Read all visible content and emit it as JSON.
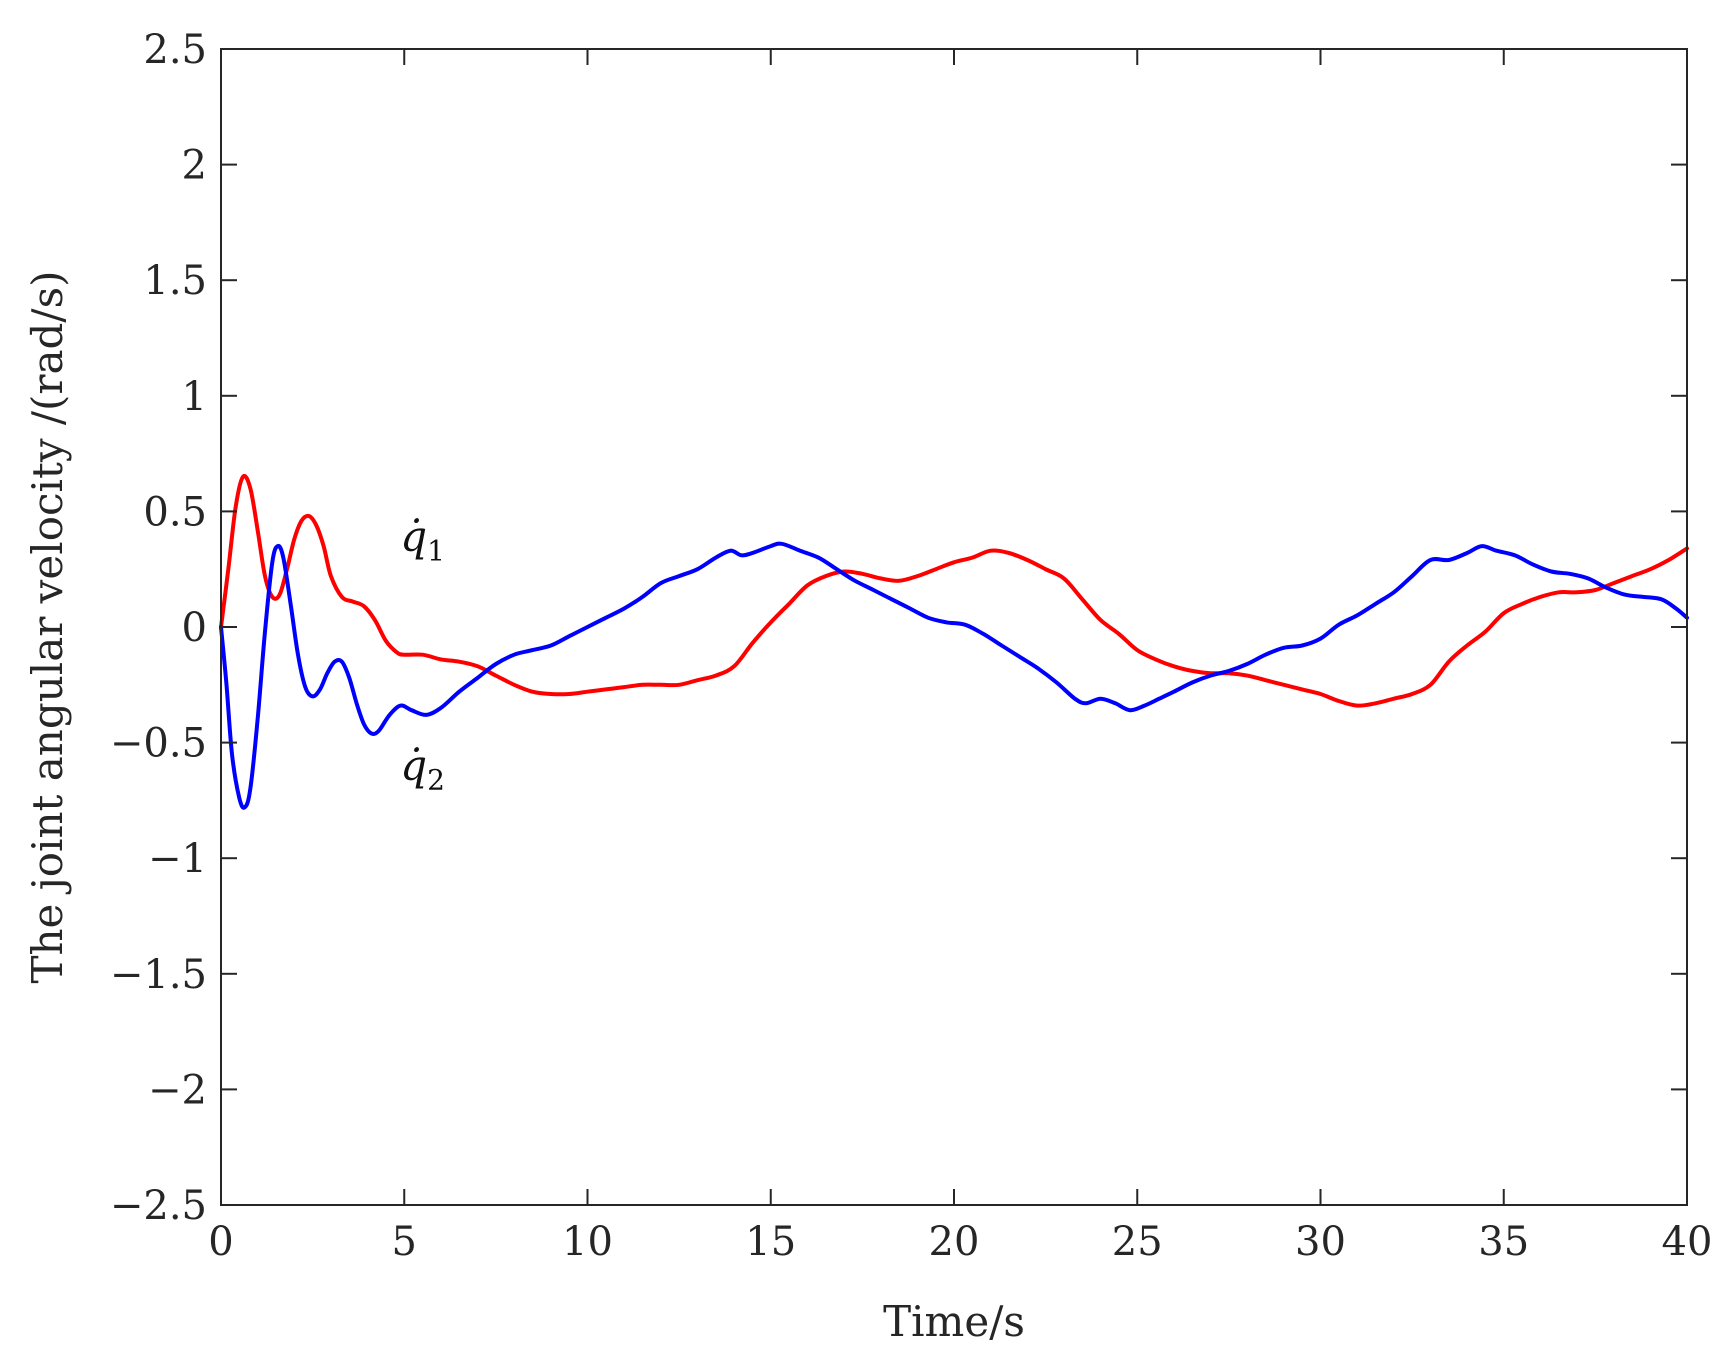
{
  "chart_data": {
    "type": "line",
    "title": "",
    "xlabel": "Time/s",
    "ylabel": "The joint angular velocity /(rad/s)",
    "xlim": [
      0,
      40
    ],
    "ylim": [
      -2.5,
      2.5
    ],
    "xticks": [
      0,
      5,
      10,
      15,
      20,
      25,
      30,
      35,
      40
    ],
    "xtick_labels": [
      "0",
      "5",
      "10",
      "15",
      "20",
      "25",
      "30",
      "35",
      "40"
    ],
    "yticks": [
      -2.5,
      -2,
      -1.5,
      -1,
      -0.5,
      0,
      0.5,
      1,
      1.5,
      2,
      2.5
    ],
    "ytick_labels": [
      "−2.5",
      "−2",
      "−1.5",
      "−1",
      "−0.5",
      "0",
      "0.5",
      "1",
      "1.5",
      "2",
      "2.5"
    ],
    "grid": false,
    "legend": "none",
    "annotations": [
      {
        "symbol": "q̇",
        "subscript": "1",
        "x": 5.5,
        "y": 0.33,
        "series": 0
      },
      {
        "symbol": "q̇",
        "subscript": "2",
        "x": 5.5,
        "y": -0.66,
        "series": 1
      }
    ],
    "series": [
      {
        "color": "#ff0000",
        "points": [
          [
            0,
            0
          ],
          [
            0.2,
            0.25
          ],
          [
            0.4,
            0.52
          ],
          [
            0.6,
            0.65
          ],
          [
            0.8,
            0.6
          ],
          [
            1.0,
            0.42
          ],
          [
            1.2,
            0.22
          ],
          [
            1.4,
            0.13
          ],
          [
            1.6,
            0.14
          ],
          [
            1.8,
            0.25
          ],
          [
            2.0,
            0.38
          ],
          [
            2.2,
            0.46
          ],
          [
            2.4,
            0.48
          ],
          [
            2.6,
            0.44
          ],
          [
            2.8,
            0.35
          ],
          [
            3.0,
            0.22
          ],
          [
            3.3,
            0.13
          ],
          [
            3.6,
            0.11
          ],
          [
            3.9,
            0.09
          ],
          [
            4.2,
            0.03
          ],
          [
            4.5,
            -0.06
          ],
          [
            4.8,
            -0.11
          ],
          [
            5.0,
            -0.12
          ],
          [
            5.5,
            -0.12
          ],
          [
            6.0,
            -0.14
          ],
          [
            6.5,
            -0.15
          ],
          [
            7.0,
            -0.17
          ],
          [
            7.5,
            -0.21
          ],
          [
            8.0,
            -0.25
          ],
          [
            8.5,
            -0.28
          ],
          [
            9.0,
            -0.29
          ],
          [
            9.5,
            -0.29
          ],
          [
            10.0,
            -0.28
          ],
          [
            10.5,
            -0.27
          ],
          [
            11.0,
            -0.26
          ],
          [
            11.5,
            -0.25
          ],
          [
            12.0,
            -0.25
          ],
          [
            12.5,
            -0.25
          ],
          [
            13.0,
            -0.23
          ],
          [
            13.5,
            -0.21
          ],
          [
            14.0,
            -0.17
          ],
          [
            14.5,
            -0.07
          ],
          [
            15.0,
            0.02
          ],
          [
            15.5,
            0.1
          ],
          [
            16.0,
            0.18
          ],
          [
            16.5,
            0.22
          ],
          [
            17.0,
            0.24
          ],
          [
            17.5,
            0.23
          ],
          [
            18.0,
            0.21
          ],
          [
            18.5,
            0.2
          ],
          [
            19.0,
            0.22
          ],
          [
            19.5,
            0.25
          ],
          [
            20.0,
            0.28
          ],
          [
            20.5,
            0.3
          ],
          [
            21.0,
            0.33
          ],
          [
            21.5,
            0.32
          ],
          [
            22.0,
            0.29
          ],
          [
            22.5,
            0.25
          ],
          [
            23.0,
            0.21
          ],
          [
            23.5,
            0.12
          ],
          [
            24.0,
            0.03
          ],
          [
            24.5,
            -0.03
          ],
          [
            25.0,
            -0.1
          ],
          [
            25.5,
            -0.14
          ],
          [
            26.0,
            -0.17
          ],
          [
            26.5,
            -0.19
          ],
          [
            27.0,
            -0.2
          ],
          [
            27.5,
            -0.2
          ],
          [
            28.0,
            -0.21
          ],
          [
            28.5,
            -0.23
          ],
          [
            29.0,
            -0.25
          ],
          [
            29.5,
            -0.27
          ],
          [
            30.0,
            -0.29
          ],
          [
            30.5,
            -0.32
          ],
          [
            31.0,
            -0.34
          ],
          [
            31.5,
            -0.33
          ],
          [
            32.0,
            -0.31
          ],
          [
            32.5,
            -0.29
          ],
          [
            33.0,
            -0.25
          ],
          [
            33.5,
            -0.15
          ],
          [
            34.0,
            -0.08
          ],
          [
            34.5,
            -0.02
          ],
          [
            35.0,
            0.06
          ],
          [
            35.5,
            0.1
          ],
          [
            36.0,
            0.13
          ],
          [
            36.5,
            0.15
          ],
          [
            37.0,
            0.15
          ],
          [
            37.5,
            0.16
          ],
          [
            38.0,
            0.19
          ],
          [
            38.5,
            0.22
          ],
          [
            39.0,
            0.25
          ],
          [
            39.5,
            0.29
          ],
          [
            40.0,
            0.34
          ]
        ]
      },
      {
        "color": "#0000ff",
        "points": [
          [
            0,
            0
          ],
          [
            0.15,
            -0.25
          ],
          [
            0.3,
            -0.55
          ],
          [
            0.5,
            -0.74
          ],
          [
            0.65,
            -0.78
          ],
          [
            0.8,
            -0.7
          ],
          [
            1.0,
            -0.4
          ],
          [
            1.2,
            -0.02
          ],
          [
            1.4,
            0.28
          ],
          [
            1.55,
            0.35
          ],
          [
            1.7,
            0.3
          ],
          [
            1.9,
            0.1
          ],
          [
            2.1,
            -0.12
          ],
          [
            2.3,
            -0.26
          ],
          [
            2.5,
            -0.3
          ],
          [
            2.7,
            -0.27
          ],
          [
            2.9,
            -0.2
          ],
          [
            3.1,
            -0.15
          ],
          [
            3.3,
            -0.15
          ],
          [
            3.5,
            -0.22
          ],
          [
            3.7,
            -0.33
          ],
          [
            3.9,
            -0.42
          ],
          [
            4.1,
            -0.46
          ],
          [
            4.3,
            -0.45
          ],
          [
            4.6,
            -0.38
          ],
          [
            4.9,
            -0.34
          ],
          [
            5.2,
            -0.36
          ],
          [
            5.6,
            -0.38
          ],
          [
            6.0,
            -0.35
          ],
          [
            6.5,
            -0.28
          ],
          [
            7.0,
            -0.22
          ],
          [
            7.5,
            -0.16
          ],
          [
            8.0,
            -0.12
          ],
          [
            8.5,
            -0.1
          ],
          [
            9.0,
            -0.08
          ],
          [
            9.5,
            -0.04
          ],
          [
            10.0,
            0.0
          ],
          [
            10.5,
            0.04
          ],
          [
            11.0,
            0.08
          ],
          [
            11.5,
            0.13
          ],
          [
            12.0,
            0.19
          ],
          [
            12.5,
            0.22
          ],
          [
            13.0,
            0.25
          ],
          [
            13.5,
            0.3
          ],
          [
            13.9,
            0.33
          ],
          [
            14.2,
            0.31
          ],
          [
            14.5,
            0.32
          ],
          [
            15.0,
            0.35
          ],
          [
            15.3,
            0.36
          ],
          [
            15.8,
            0.33
          ],
          [
            16.3,
            0.3
          ],
          [
            16.8,
            0.25
          ],
          [
            17.3,
            0.2
          ],
          [
            17.8,
            0.16
          ],
          [
            18.3,
            0.12
          ],
          [
            18.8,
            0.08
          ],
          [
            19.3,
            0.04
          ],
          [
            19.8,
            0.02
          ],
          [
            20.3,
            0.01
          ],
          [
            20.8,
            -0.03
          ],
          [
            21.3,
            -0.08
          ],
          [
            21.8,
            -0.13
          ],
          [
            22.3,
            -0.18
          ],
          [
            22.8,
            -0.24
          ],
          [
            23.3,
            -0.31
          ],
          [
            23.6,
            -0.33
          ],
          [
            24.0,
            -0.31
          ],
          [
            24.4,
            -0.33
          ],
          [
            24.8,
            -0.36
          ],
          [
            25.2,
            -0.34
          ],
          [
            25.6,
            -0.31
          ],
          [
            26.0,
            -0.28
          ],
          [
            26.5,
            -0.24
          ],
          [
            27.0,
            -0.21
          ],
          [
            27.5,
            -0.19
          ],
          [
            28.0,
            -0.16
          ],
          [
            28.5,
            -0.12
          ],
          [
            29.0,
            -0.09
          ],
          [
            29.5,
            -0.08
          ],
          [
            30.0,
            -0.05
          ],
          [
            30.5,
            0.01
          ],
          [
            31.0,
            0.05
          ],
          [
            31.5,
            0.1
          ],
          [
            32.0,
            0.15
          ],
          [
            32.5,
            0.22
          ],
          [
            33.0,
            0.29
          ],
          [
            33.5,
            0.29
          ],
          [
            34.0,
            0.32
          ],
          [
            34.4,
            0.35
          ],
          [
            34.8,
            0.33
          ],
          [
            35.3,
            0.31
          ],
          [
            35.8,
            0.27
          ],
          [
            36.3,
            0.24
          ],
          [
            36.8,
            0.23
          ],
          [
            37.3,
            0.21
          ],
          [
            37.8,
            0.17
          ],
          [
            38.3,
            0.14
          ],
          [
            38.8,
            0.13
          ],
          [
            39.3,
            0.12
          ],
          [
            39.7,
            0.08
          ],
          [
            40.0,
            0.04
          ]
        ]
      }
    ]
  }
}
